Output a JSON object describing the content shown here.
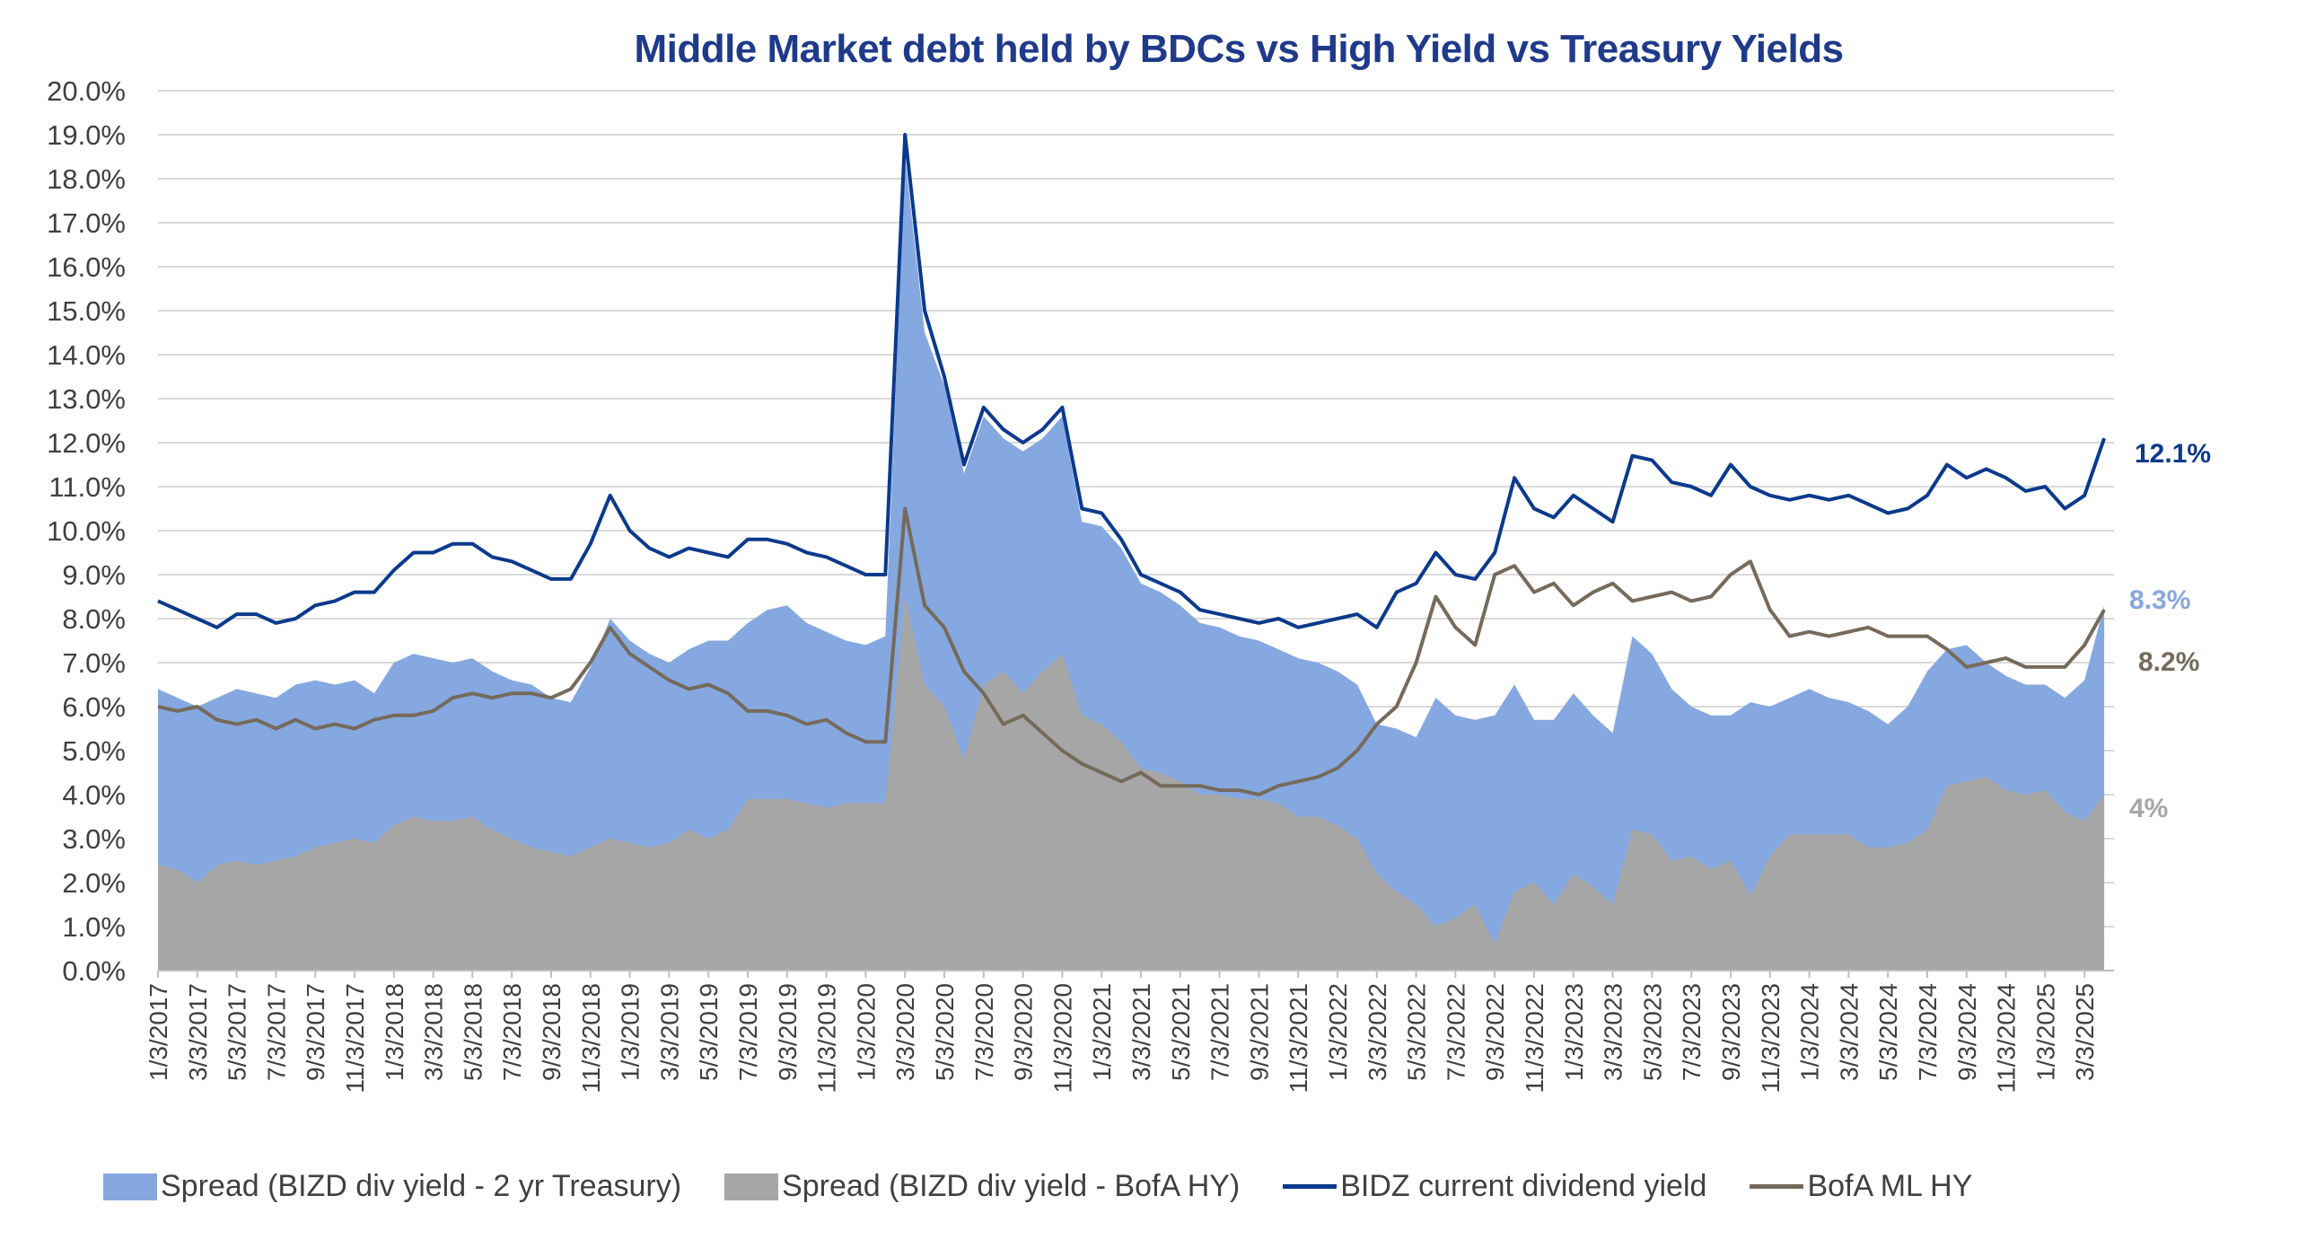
{
  "chart_data": {
    "type": "area+line",
    "title": "Middle Market debt held by BDCs vs High Yield vs Treasury Yields",
    "xlabel": "",
    "ylabel": "",
    "ylim": [
      0,
      20
    ],
    "y_ticks": [
      "0.0%",
      "1.0%",
      "2.0%",
      "3.0%",
      "4.0%",
      "5.0%",
      "6.0%",
      "7.0%",
      "8.0%",
      "9.0%",
      "10.0%",
      "11.0%",
      "12.0%",
      "13.0%",
      "14.0%",
      "15.0%",
      "16.0%",
      "17.0%",
      "18.0%",
      "19.0%",
      "20.0%"
    ],
    "x_ticks": [
      "1/3/2017",
      "3/3/2017",
      "5/3/2017",
      "7/3/2017",
      "9/3/2017",
      "11/3/2017",
      "1/3/2018",
      "3/3/2018",
      "5/3/2018",
      "7/3/2018",
      "9/3/2018",
      "11/3/2018",
      "1/3/2019",
      "3/3/2019",
      "5/3/2019",
      "7/3/2019",
      "9/3/2019",
      "11/3/2019",
      "1/3/2020",
      "3/3/2020",
      "5/3/2020",
      "7/3/2020",
      "9/3/2020",
      "11/3/2020",
      "1/3/2021",
      "3/3/2021",
      "5/3/2021",
      "7/3/2021",
      "9/3/2021",
      "11/3/2021",
      "1/3/2022",
      "3/3/2022",
      "5/3/2022",
      "7/3/2022",
      "9/3/2022",
      "11/3/2022",
      "1/3/2023",
      "3/3/2023",
      "5/3/2023",
      "7/3/2023",
      "9/3/2023",
      "11/3/2023",
      "1/3/2024",
      "3/3/2024",
      "5/3/2024",
      "7/3/2024",
      "9/3/2024",
      "11/3/2024",
      "1/3/2025",
      "3/3/2025"
    ],
    "x_start": "2017-01",
    "x_frequency": "monthly",
    "grid": true,
    "legend_position": "bottom",
    "series": [
      {
        "name": "Spread (BIZD div yield - 2 yr Treasury)",
        "kind": "area",
        "color": "#86a8e0",
        "end_label": "8.3%",
        "values": [
          6.4,
          6.2,
          6.0,
          6.2,
          6.4,
          6.3,
          6.2,
          6.5,
          6.6,
          6.5,
          6.6,
          6.3,
          7.0,
          7.2,
          7.1,
          7.0,
          7.1,
          6.8,
          6.6,
          6.5,
          6.2,
          6.1,
          6.9,
          8.0,
          7.5,
          7.2,
          7.0,
          7.3,
          7.5,
          7.5,
          7.9,
          8.2,
          8.3,
          7.9,
          7.7,
          7.5,
          7.4,
          7.6,
          18.5,
          14.5,
          13.3,
          11.3,
          12.6,
          12.1,
          11.8,
          12.1,
          12.6,
          10.2,
          10.1,
          9.6,
          8.8,
          8.6,
          8.3,
          7.9,
          7.8,
          7.6,
          7.5,
          7.3,
          7.1,
          7.0,
          6.8,
          6.5,
          5.6,
          5.5,
          5.3,
          6.2,
          5.8,
          5.7,
          5.8,
          6.5,
          5.7,
          5.7,
          6.3,
          5.8,
          5.4,
          7.6,
          7.2,
          6.4,
          6.0,
          5.8,
          5.8,
          6.1,
          6.0,
          6.2,
          6.4,
          6.2,
          6.1,
          5.9,
          5.6,
          6.0,
          6.8,
          7.3,
          7.4,
          7.0,
          6.7,
          6.5,
          6.5,
          6.2,
          6.6,
          8.3
        ]
      },
      {
        "name": "Spread (BIZD div yield - BofA HY)",
        "kind": "area",
        "color": "#a6a6a6",
        "end_label": "4%",
        "values": [
          2.4,
          2.3,
          2.0,
          2.4,
          2.5,
          2.4,
          2.5,
          2.6,
          2.8,
          2.9,
          3.0,
          2.9,
          3.3,
          3.5,
          3.4,
          3.4,
          3.5,
          3.2,
          3.0,
          2.8,
          2.7,
          2.6,
          2.8,
          3.0,
          2.9,
          2.8,
          2.9,
          3.2,
          3.0,
          3.2,
          3.9,
          3.9,
          3.9,
          3.8,
          3.7,
          3.8,
          3.8,
          3.8,
          8.5,
          6.5,
          6.0,
          4.8,
          6.5,
          6.8,
          6.3,
          6.8,
          7.2,
          5.8,
          5.6,
          5.2,
          4.6,
          4.5,
          4.3,
          4.0,
          4.0,
          3.9,
          3.9,
          3.8,
          3.5,
          3.5,
          3.3,
          3.0,
          2.2,
          1.8,
          1.5,
          1.0,
          1.2,
          1.5,
          0.6,
          1.8,
          2.0,
          1.5,
          2.2,
          1.9,
          1.5,
          3.2,
          3.1,
          2.5,
          2.6,
          2.3,
          2.5,
          1.7,
          2.6,
          3.1,
          3.1,
          3.1,
          3.1,
          2.8,
          2.8,
          2.9,
          3.2,
          4.2,
          4.3,
          4.4,
          4.1,
          4.0,
          4.1,
          3.6,
          3.4,
          4.0
        ]
      },
      {
        "name": "BIDZ current dividend yield",
        "kind": "line",
        "color": "#0b3a8c",
        "end_label": "12.1%",
        "values": [
          8.4,
          8.2,
          8.0,
          7.8,
          8.1,
          8.1,
          7.9,
          8.0,
          8.3,
          8.4,
          8.6,
          8.6,
          9.1,
          9.5,
          9.5,
          9.7,
          9.7,
          9.4,
          9.3,
          9.1,
          8.9,
          8.9,
          9.7,
          10.8,
          10.0,
          9.6,
          9.4,
          9.6,
          9.5,
          9.4,
          9.8,
          9.8,
          9.7,
          9.5,
          9.4,
          9.2,
          9.0,
          9.0,
          19.0,
          15.0,
          13.5,
          11.5,
          12.8,
          12.3,
          12.0,
          12.3,
          12.8,
          10.5,
          10.4,
          9.8,
          9.0,
          8.8,
          8.6,
          8.2,
          8.1,
          8.0,
          7.9,
          8.0,
          7.8,
          7.9,
          8.0,
          8.1,
          7.8,
          8.6,
          8.8,
          9.5,
          9.0,
          8.9,
          9.5,
          11.2,
          10.5,
          10.3,
          10.8,
          10.5,
          10.2,
          11.7,
          11.6,
          11.1,
          11.0,
          10.8,
          11.5,
          11.0,
          10.8,
          10.7,
          10.8,
          10.7,
          10.8,
          10.6,
          10.4,
          10.5,
          10.8,
          11.5,
          11.2,
          11.4,
          11.2,
          10.9,
          11.0,
          10.5,
          10.8,
          12.1
        ]
      },
      {
        "name": "BofA ML HY",
        "kind": "line",
        "color": "#756a5b",
        "end_label": "8.2%",
        "values": [
          6.0,
          5.9,
          6.0,
          5.7,
          5.6,
          5.7,
          5.5,
          5.7,
          5.5,
          5.6,
          5.5,
          5.7,
          5.8,
          5.8,
          5.9,
          6.2,
          6.3,
          6.2,
          6.3,
          6.3,
          6.2,
          6.4,
          7.0,
          7.8,
          7.2,
          6.9,
          6.6,
          6.4,
          6.5,
          6.3,
          5.9,
          5.9,
          5.8,
          5.6,
          5.7,
          5.4,
          5.2,
          5.2,
          10.5,
          8.3,
          7.8,
          6.8,
          6.3,
          5.6,
          5.8,
          5.4,
          5.0,
          4.7,
          4.5,
          4.3,
          4.5,
          4.2,
          4.2,
          4.2,
          4.1,
          4.1,
          4.0,
          4.2,
          4.3,
          4.4,
          4.6,
          5.0,
          5.6,
          6.0,
          7.0,
          8.5,
          7.8,
          7.4,
          9.0,
          9.2,
          8.6,
          8.8,
          8.3,
          8.6,
          8.8,
          8.4,
          8.5,
          8.6,
          8.4,
          8.5,
          9.0,
          9.3,
          8.2,
          7.6,
          7.7,
          7.6,
          7.7,
          7.8,
          7.6,
          7.6,
          7.6,
          7.3,
          6.9,
          7.0,
          7.1,
          6.9,
          6.9,
          6.9,
          7.4,
          8.2
        ]
      }
    ]
  }
}
